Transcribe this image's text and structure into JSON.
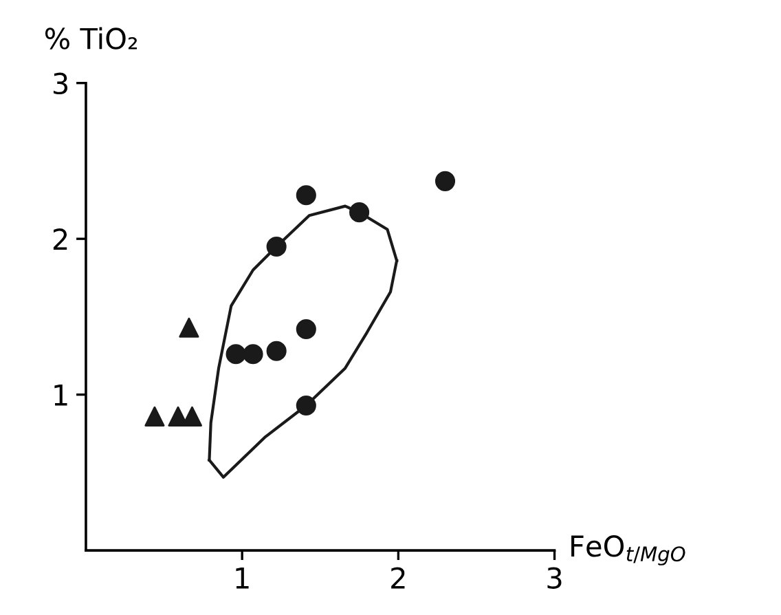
{
  "chart_data": {
    "type": "scatter",
    "xlabel": "FeO$_{t/MgO}$",
    "ylabel": "% TiO₂",
    "xlim": [
      0,
      3
    ],
    "ylim": [
      0,
      3
    ],
    "xticks": [
      1,
      2,
      3
    ],
    "yticks": [
      1,
      2,
      3
    ],
    "grid": false,
    "legend": false,
    "series": [
      {
        "color": "#1a1a1a",
        "marker": "circle",
        "x": [
          1.41,
          1.75,
          1.22,
          1.41,
          0.96,
          1.07,
          1.22,
          1.41,
          2.3
        ],
        "values": [
          2.28,
          2.17,
          1.95,
          1.42,
          1.26,
          1.26,
          1.28,
          0.93,
          2.37
        ]
      },
      {
        "color": "#1a1a1a",
        "marker": "triangle",
        "x": [
          0.66,
          0.44,
          0.59,
          0.68
        ],
        "values": [
          1.43,
          0.86,
          0.86,
          0.86
        ]
      },
      {
        "type": "line",
        "color": "#1a1a1a",
        "marker": "none",
        "line_style": "solid",
        "x": [
          0.79,
          0.8,
          0.85,
          0.93,
          1.07,
          1.22,
          1.43,
          1.66,
          1.75,
          1.93,
          1.99
        ],
        "values": [
          0.58,
          0.82,
          1.17,
          1.57,
          1.8,
          1.95,
          2.15,
          2.21,
          2.17,
          2.06,
          1.86
        ]
      },
      {
        "type": "line",
        "color": "#1a1a1a",
        "marker": "none",
        "line_style": "solid",
        "x": [
          0.79,
          0.88,
          1.15,
          1.41,
          1.66,
          1.8,
          1.95,
          1.99
        ],
        "values": [
          0.58,
          0.47,
          0.73,
          0.93,
          1.17,
          1.4,
          1.66,
          1.86
        ]
      }
    ]
  }
}
